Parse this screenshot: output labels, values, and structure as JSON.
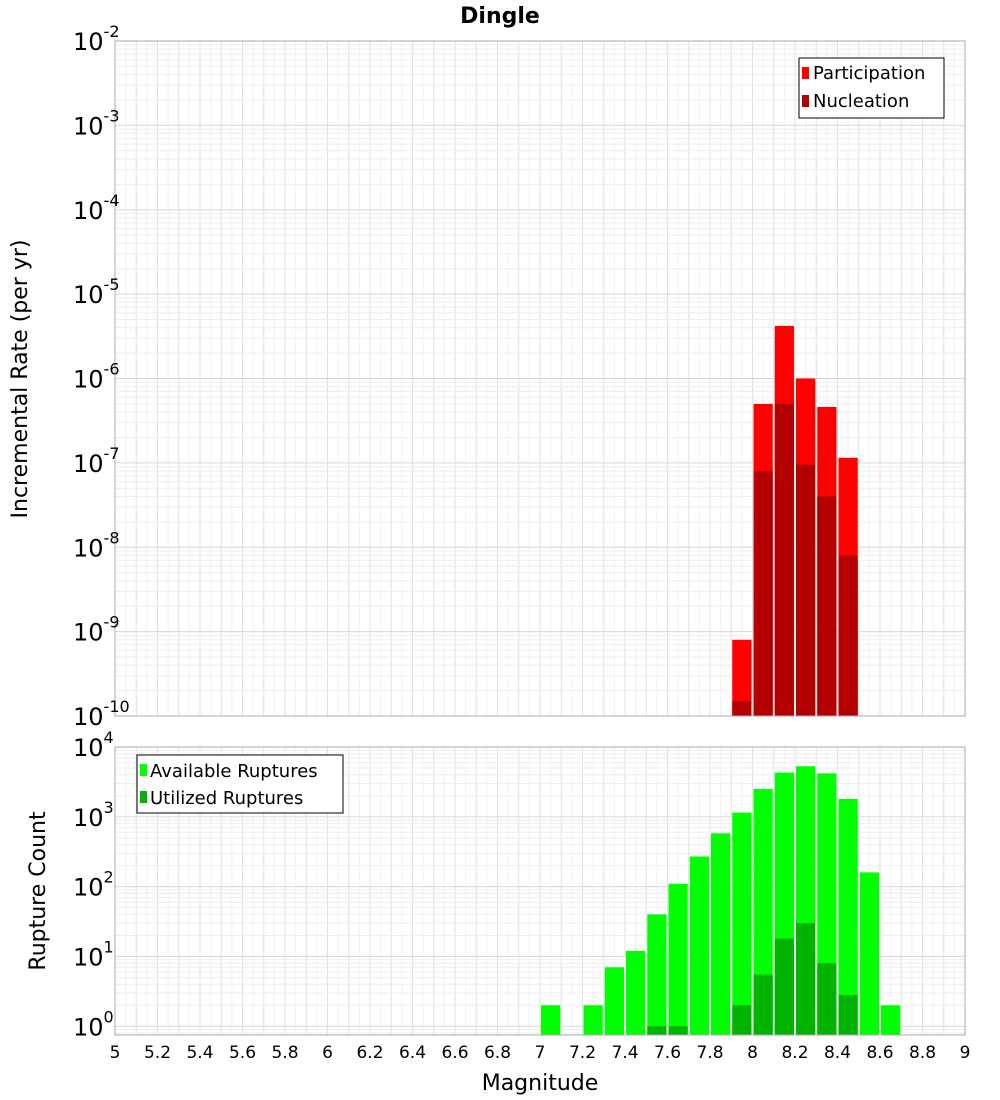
{
  "title": "Dingle",
  "xlabel": "Magnitude",
  "colors": {
    "participation": "#ff0000",
    "nucleation": "#b30000",
    "available": "#00ff00",
    "utilized": "#00b300",
    "grid": "#e6e6e6",
    "frame": "#aaaaaa"
  },
  "chart_data": [
    {
      "type": "bar",
      "title": "Dingle",
      "ylabel": "Incremental Rate (per yr)",
      "xlabel": "",
      "yscale": "log",
      "ylim": [
        1e-10,
        0.01
      ],
      "xlim": [
        5,
        9
      ],
      "ytick_exponents": [
        -10,
        -9,
        -8,
        -7,
        -6,
        -5,
        -4,
        -3,
        -2
      ],
      "bar_width": 0.1,
      "grid": true,
      "legend_position": "top-right",
      "series": [
        {
          "name": "Participation",
          "color": "#ff0000",
          "x": [
            7.95,
            8.05,
            8.15,
            8.25,
            8.35,
            8.45
          ],
          "values": [
            8e-10,
            5e-07,
            4.2e-06,
            1e-06,
            4.6e-07,
            1.15e-07
          ]
        },
        {
          "name": "Nucleation",
          "color": "#b30000",
          "x": [
            7.95,
            8.05,
            8.15,
            8.25,
            8.35,
            8.45
          ],
          "values": [
            1.5e-10,
            8e-08,
            5e-07,
            9.5e-08,
            4e-08,
            8e-09
          ]
        }
      ]
    },
    {
      "type": "bar",
      "title": "",
      "ylabel": "Rupture Count",
      "xlabel": "Magnitude",
      "yscale": "log",
      "ylim": [
        0.75,
        10000
      ],
      "xlim": [
        5,
        9
      ],
      "ytick_exponents": [
        0,
        1,
        2,
        3,
        4
      ],
      "bar_width": 0.1,
      "grid": true,
      "legend_position": "top-left",
      "series": [
        {
          "name": "Available Ruptures",
          "color": "#00ff00",
          "x": [
            7.05,
            7.25,
            7.35,
            7.45,
            7.55,
            7.65,
            7.75,
            7.85,
            7.95,
            8.05,
            8.15,
            8.25,
            8.35,
            8.45,
            8.55,
            8.65
          ],
          "values": [
            2,
            2,
            7,
            12,
            40,
            110,
            270,
            580,
            1150,
            2500,
            4300,
            5300,
            4200,
            1800,
            160,
            2
          ]
        },
        {
          "name": "Utilized Ruptures",
          "color": "#00b300",
          "x": [
            7.55,
            7.65,
            7.95,
            8.05,
            8.15,
            8.25,
            8.35,
            8.45
          ],
          "values": [
            1,
            1,
            2,
            5.5,
            18,
            30,
            8,
            2.8
          ]
        }
      ]
    }
  ],
  "xticks": [
    "5",
    "5.2",
    "5.4",
    "5.6",
    "5.8",
    "6",
    "6.2",
    "6.4",
    "6.6",
    "6.8",
    "7",
    "7.2",
    "7.4",
    "7.6",
    "7.8",
    "8",
    "8.2",
    "8.4",
    "8.6",
    "8.8",
    "9"
  ]
}
